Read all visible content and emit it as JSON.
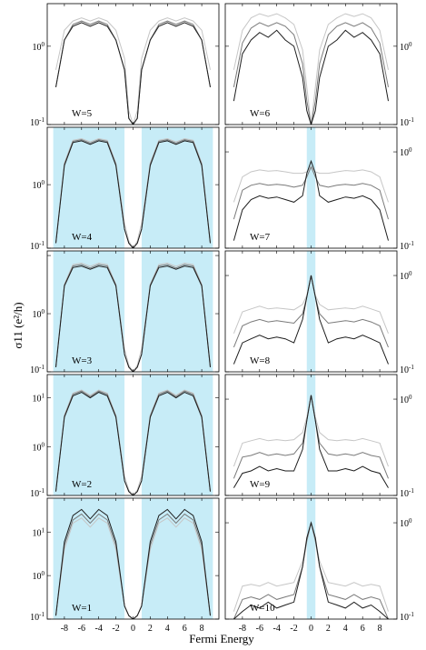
{
  "figure": {
    "ylabel": "σ11 (e²/h)",
    "xlabel": "Fermi Energy",
    "colors": {
      "shade": "#c7ecf7",
      "series_dark": "#1e1e1e",
      "series_mid": "#7a7a7a",
      "series_light": "#c6c6c6",
      "frame": "#000000"
    }
  },
  "chart_data": [
    {
      "type": "line",
      "panel": "left-1",
      "label": "W=5",
      "yscale": "log",
      "ylim": [
        0.1,
        3.5
      ],
      "ytick_labels": [
        "10^0",
        "10^-1"
      ],
      "xlim": [
        -10,
        10
      ],
      "shaded": [],
      "x": [
        -9,
        -8,
        -7,
        -6,
        -5,
        -4,
        -3,
        -2,
        -1,
        -0.5,
        0,
        0.5,
        1,
        2,
        3,
        4,
        5,
        6,
        7,
        8,
        9
      ],
      "series": [
        {
          "values": [
            0.3,
            1.2,
            1.8,
            2.0,
            1.8,
            2.0,
            1.8,
            1.2,
            0.5,
            0.12,
            0.1,
            0.12,
            0.5,
            1.2,
            1.8,
            2.0,
            1.8,
            2.0,
            1.8,
            1.2,
            0.3
          ]
        },
        {
          "values": [
            0.3,
            1.2,
            1.9,
            2.1,
            1.9,
            2.1,
            1.9,
            1.2,
            0.5,
            0.12,
            0.1,
            0.12,
            0.5,
            1.2,
            1.9,
            2.1,
            1.9,
            2.1,
            1.9,
            1.2,
            0.3
          ]
        },
        {
          "values": [
            0.5,
            1.6,
            2.1,
            2.3,
            2.1,
            2.3,
            2.1,
            1.6,
            0.7,
            0.15,
            0.1,
            0.15,
            0.7,
            1.6,
            2.1,
            2.3,
            2.1,
            2.3,
            2.1,
            1.6,
            0.5
          ]
        }
      ]
    },
    {
      "type": "line",
      "panel": "right-1",
      "label": "W=6",
      "yscale": "log",
      "ylim": [
        0.1,
        3.5
      ],
      "ytick_labels": [
        "10^0",
        "10^-1"
      ],
      "xlim": [
        -10,
        10
      ],
      "shaded": [],
      "x": [
        -9,
        -8,
        -7,
        -6,
        -5,
        -4,
        -3,
        -2,
        -1,
        -0.5,
        0,
        0.5,
        1,
        2,
        3,
        4,
        5,
        6,
        7,
        8,
        9
      ],
      "series": [
        {
          "values": [
            0.2,
            0.8,
            1.2,
            1.5,
            1.3,
            1.6,
            1.2,
            1.0,
            0.4,
            0.15,
            0.1,
            0.15,
            0.4,
            1.0,
            1.2,
            1.6,
            1.3,
            1.5,
            1.2,
            0.8,
            0.2
          ]
        },
        {
          "values": [
            0.3,
            1.1,
            1.7,
            2.0,
            1.8,
            2.0,
            1.8,
            1.4,
            0.6,
            0.2,
            0.1,
            0.2,
            0.6,
            1.4,
            1.8,
            2.0,
            1.8,
            2.0,
            1.7,
            1.1,
            0.3
          ]
        },
        {
          "values": [
            0.5,
            1.6,
            2.3,
            2.6,
            2.4,
            2.6,
            2.3,
            1.9,
            0.9,
            0.3,
            0.1,
            0.3,
            0.9,
            1.9,
            2.3,
            2.6,
            2.4,
            2.6,
            2.3,
            1.6,
            0.5
          ]
        }
      ]
    },
    {
      "type": "line",
      "panel": "left-2",
      "label": "W=4",
      "yscale": "log",
      "ylim": [
        0.1,
        8
      ],
      "ytick_labels": [
        "10^0",
        "10^-1"
      ],
      "xlim": [
        -10,
        10
      ],
      "shaded": [
        [
          -9.3,
          -1.0
        ],
        [
          1.0,
          9.3
        ]
      ],
      "x": [
        -9,
        -8,
        -7,
        -6,
        -5,
        -4,
        -3,
        -2,
        -1,
        -0.5,
        0,
        0.5,
        1,
        2,
        3,
        4,
        5,
        6,
        7,
        8,
        9
      ],
      "series": [
        {
          "values": [
            0.12,
            2.0,
            4.6,
            4.9,
            4.3,
            4.9,
            4.6,
            2.0,
            0.2,
            0.12,
            0.1,
            0.12,
            0.2,
            2.0,
            4.6,
            4.9,
            4.3,
            4.9,
            4.6,
            2.0,
            0.12
          ]
        },
        {
          "values": [
            0.12,
            2.1,
            4.8,
            5.1,
            4.5,
            5.1,
            4.8,
            2.1,
            0.2,
            0.12,
            0.1,
            0.12,
            0.2,
            2.1,
            4.8,
            5.1,
            4.5,
            5.1,
            4.8,
            2.1,
            0.12
          ]
        },
        {
          "values": [
            0.13,
            2.2,
            5.0,
            5.3,
            4.7,
            5.3,
            5.0,
            2.2,
            0.25,
            0.13,
            0.1,
            0.13,
            0.25,
            2.2,
            5.0,
            5.3,
            4.7,
            5.3,
            5.0,
            2.2,
            0.13
          ]
        }
      ]
    },
    {
      "type": "line",
      "panel": "right-2",
      "label": "W=7",
      "yscale": "log",
      "ylim": [
        0.1,
        1.8
      ],
      "ytick_labels": [
        "10^0",
        "10^-1"
      ],
      "xlim": [
        -10,
        10
      ],
      "shaded": [
        [
          -0.5,
          0.5
        ]
      ],
      "x": [
        -9,
        -8,
        -7,
        -6,
        -5,
        -4,
        -3,
        -2,
        -1,
        -0.5,
        0,
        0.5,
        1,
        2,
        3,
        4,
        5,
        6,
        7,
        8,
        9
      ],
      "series": [
        {
          "values": [
            0.12,
            0.25,
            0.32,
            0.35,
            0.33,
            0.34,
            0.32,
            0.3,
            0.35,
            0.6,
            0.8,
            0.6,
            0.35,
            0.3,
            0.32,
            0.34,
            0.33,
            0.35,
            0.32,
            0.25,
            0.12
          ]
        },
        {
          "values": [
            0.2,
            0.4,
            0.45,
            0.47,
            0.45,
            0.46,
            0.45,
            0.43,
            0.45,
            0.55,
            0.7,
            0.55,
            0.45,
            0.43,
            0.45,
            0.46,
            0.45,
            0.47,
            0.45,
            0.4,
            0.2
          ]
        },
        {
          "values": [
            0.3,
            0.55,
            0.62,
            0.65,
            0.63,
            0.64,
            0.62,
            0.6,
            0.6,
            0.62,
            0.7,
            0.62,
            0.6,
            0.6,
            0.62,
            0.64,
            0.63,
            0.65,
            0.62,
            0.55,
            0.3
          ]
        }
      ]
    },
    {
      "type": "line",
      "panel": "left-3",
      "label": "W=3",
      "yscale": "log",
      "ylim": [
        0.1,
        12
      ],
      "ytick_labels": [
        "10^0",
        "10^-1"
      ],
      "xlim": [
        -10,
        10
      ],
      "shaded": [
        [
          -9.3,
          -1.0
        ],
        [
          1.0,
          9.3
        ]
      ],
      "x": [
        -9,
        -8,
        -7,
        -6,
        -5,
        -4,
        -3,
        -2,
        -1,
        -0.5,
        0,
        0.5,
        1,
        2,
        3,
        4,
        5,
        6,
        7,
        8,
        9
      ],
      "series": [
        {
          "values": [
            0.12,
            3.0,
            6.2,
            6.6,
            5.8,
            6.6,
            6.2,
            3.0,
            0.2,
            0.12,
            0.1,
            0.12,
            0.2,
            3.0,
            6.2,
            6.6,
            5.8,
            6.6,
            6.2,
            3.0,
            0.12
          ]
        },
        {
          "values": [
            0.12,
            3.1,
            6.6,
            7.0,
            6.1,
            7.0,
            6.6,
            3.1,
            0.2,
            0.12,
            0.1,
            0.12,
            0.2,
            3.1,
            6.6,
            7.0,
            6.1,
            7.0,
            6.6,
            3.1,
            0.12
          ]
        },
        {
          "values": [
            0.13,
            3.2,
            7.0,
            7.4,
            6.5,
            7.4,
            7.0,
            3.2,
            0.25,
            0.13,
            0.1,
            0.13,
            0.25,
            3.2,
            7.0,
            7.4,
            6.5,
            7.4,
            7.0,
            3.2,
            0.13
          ]
        }
      ]
    },
    {
      "type": "line",
      "panel": "right-3",
      "label": "W=8",
      "yscale": "log",
      "ylim": [
        0.1,
        1.8
      ],
      "ytick_labels": [
        "10^0",
        "10^-1"
      ],
      "xlim": [
        -10,
        10
      ],
      "shaded": [
        [
          -0.5,
          0.5
        ]
      ],
      "x": [
        -9,
        -8,
        -7,
        -6,
        -5,
        -4,
        -3,
        -2,
        -1,
        -0.5,
        0,
        0.5,
        1,
        2,
        3,
        4,
        5,
        6,
        7,
        8,
        9
      ],
      "series": [
        {
          "values": [
            0.12,
            0.2,
            0.22,
            0.24,
            0.22,
            0.23,
            0.22,
            0.2,
            0.35,
            0.6,
            1.0,
            0.6,
            0.35,
            0.2,
            0.22,
            0.23,
            0.22,
            0.24,
            0.22,
            0.2,
            0.12
          ]
        },
        {
          "values": [
            0.18,
            0.3,
            0.33,
            0.35,
            0.33,
            0.34,
            0.33,
            0.32,
            0.4,
            0.6,
            1.0,
            0.6,
            0.4,
            0.32,
            0.33,
            0.34,
            0.33,
            0.35,
            0.33,
            0.3,
            0.18
          ]
        },
        {
          "values": [
            0.25,
            0.42,
            0.45,
            0.48,
            0.45,
            0.46,
            0.45,
            0.44,
            0.5,
            0.62,
            1.0,
            0.62,
            0.5,
            0.44,
            0.45,
            0.46,
            0.45,
            0.48,
            0.45,
            0.42,
            0.25
          ]
        }
      ]
    },
    {
      "type": "line",
      "panel": "left-4",
      "label": "W=2",
      "yscale": "log",
      "ylim": [
        0.1,
        30
      ],
      "ytick_labels": [
        "10^1",
        "10^0",
        "10^-1"
      ],
      "xlim": [
        -10,
        10
      ],
      "shaded": [
        [
          -9.3,
          -1.0
        ],
        [
          1.0,
          9.3
        ]
      ],
      "x": [
        -9,
        -8,
        -7,
        -6,
        -5,
        -4,
        -3,
        -2,
        -1,
        -0.5,
        0,
        0.5,
        1,
        2,
        3,
        4,
        5,
        6,
        7,
        8,
        9
      ],
      "series": [
        {
          "values": [
            0.12,
            4.0,
            11,
            13,
            10,
            13,
            11,
            4.0,
            0.2,
            0.12,
            0.1,
            0.12,
            0.2,
            4.0,
            11,
            13,
            10,
            13,
            11,
            4.0,
            0.12
          ]
        },
        {
          "values": [
            0.12,
            4.2,
            11.8,
            13.8,
            10.6,
            13.8,
            11.8,
            4.2,
            0.2,
            0.12,
            0.1,
            0.12,
            0.2,
            4.2,
            11.8,
            13.8,
            10.6,
            13.8,
            11.8,
            4.2,
            0.12
          ]
        },
        {
          "values": [
            0.13,
            4.4,
            12.5,
            14.5,
            11.3,
            14.5,
            12.5,
            4.4,
            0.25,
            0.13,
            0.1,
            0.13,
            0.25,
            4.4,
            12.5,
            14.5,
            11.3,
            14.5,
            12.5,
            4.4,
            0.13
          ]
        }
      ]
    },
    {
      "type": "line",
      "panel": "right-4",
      "label": "W=9",
      "yscale": "log",
      "ylim": [
        0.1,
        1.8
      ],
      "ytick_labels": [
        "10^0",
        "10^-1"
      ],
      "xlim": [
        -10,
        10
      ],
      "shaded": [
        [
          -0.5,
          0.5
        ]
      ],
      "x": [
        -9,
        -8,
        -7,
        -6,
        -5,
        -4,
        -3,
        -2,
        -1,
        -0.5,
        0,
        0.5,
        1,
        2,
        3,
        4,
        5,
        6,
        7,
        8,
        9
      ],
      "series": [
        {
          "values": [
            0.12,
            0.17,
            0.18,
            0.2,
            0.18,
            0.19,
            0.18,
            0.18,
            0.3,
            0.6,
            1.1,
            0.6,
            0.3,
            0.18,
            0.18,
            0.19,
            0.18,
            0.2,
            0.18,
            0.17,
            0.12
          ]
        },
        {
          "values": [
            0.15,
            0.25,
            0.26,
            0.28,
            0.26,
            0.27,
            0.26,
            0.27,
            0.35,
            0.6,
            1.1,
            0.6,
            0.35,
            0.27,
            0.26,
            0.27,
            0.26,
            0.28,
            0.26,
            0.25,
            0.15
          ]
        },
        {
          "values": [
            0.2,
            0.35,
            0.37,
            0.39,
            0.37,
            0.38,
            0.37,
            0.38,
            0.45,
            0.65,
            1.1,
            0.65,
            0.45,
            0.38,
            0.37,
            0.38,
            0.37,
            0.39,
            0.37,
            0.35,
            0.2
          ]
        }
      ]
    },
    {
      "type": "line",
      "panel": "left-5",
      "label": "W=1",
      "yscale": "log",
      "ylim": [
        0.1,
        60
      ],
      "ytick_labels": [
        "10^1",
        "10^0",
        "10^-1"
      ],
      "xlim": [
        -10,
        10
      ],
      "shaded": [
        [
          -9.3,
          -1.0
        ],
        [
          1.0,
          9.3
        ]
      ],
      "x": [
        -9,
        -8,
        -7,
        -6,
        -5,
        -4,
        -3,
        -2,
        -1,
        -0.5,
        0,
        0.5,
        1,
        2,
        3,
        4,
        5,
        6,
        7,
        8,
        9
      ],
      "series": [
        {
          "values": [
            0.12,
            6,
            24,
            33,
            20,
            33,
            24,
            6,
            0.2,
            0.12,
            0.1,
            0.12,
            0.2,
            6,
            24,
            33,
            20,
            33,
            24,
            6,
            0.12
          ]
        },
        {
          "values": [
            0.12,
            5,
            19,
            26,
            16,
            26,
            19,
            5,
            0.2,
            0.12,
            0.1,
            0.12,
            0.2,
            5,
            19,
            26,
            16,
            26,
            19,
            5,
            0.12
          ]
        },
        {
          "values": [
            0.12,
            4,
            16,
            21,
            13,
            21,
            16,
            4,
            0.2,
            0.12,
            0.1,
            0.12,
            0.2,
            4,
            16,
            21,
            13,
            21,
            16,
            4,
            0.12
          ]
        }
      ]
    },
    {
      "type": "line",
      "panel": "right-5",
      "label": "W=10",
      "yscale": "log",
      "ylim": [
        0.1,
        1.8
      ],
      "ytick_labels": [
        "10^0",
        "10^-1"
      ],
      "xlim": [
        -10,
        10
      ],
      "shaded": [
        [
          -0.5,
          0.5
        ]
      ],
      "x": [
        -9,
        -8,
        -7,
        -6,
        -5,
        -4,
        -3,
        -2,
        -1,
        -0.5,
        0,
        0.5,
        1,
        2,
        3,
        4,
        5,
        6,
        7,
        8,
        9
      ],
      "series": [
        {
          "values": [
            0.1,
            0.12,
            0.14,
            0.13,
            0.15,
            0.13,
            0.14,
            0.15,
            0.35,
            0.7,
            1.0,
            0.7,
            0.35,
            0.15,
            0.14,
            0.13,
            0.15,
            0.13,
            0.14,
            0.12,
            0.1
          ]
        },
        {
          "values": [
            0.1,
            0.16,
            0.17,
            0.16,
            0.18,
            0.16,
            0.17,
            0.18,
            0.35,
            0.65,
            1.0,
            0.65,
            0.35,
            0.18,
            0.17,
            0.16,
            0.18,
            0.16,
            0.17,
            0.16,
            0.1
          ]
        },
        {
          "values": [
            0.12,
            0.22,
            0.23,
            0.22,
            0.24,
            0.22,
            0.23,
            0.24,
            0.4,
            0.65,
            1.0,
            0.65,
            0.4,
            0.24,
            0.23,
            0.22,
            0.24,
            0.22,
            0.23,
            0.22,
            0.12
          ]
        }
      ]
    }
  ],
  "x_tick_labels": [
    "-8",
    "-6",
    "-4",
    "-2",
    "0",
    "2",
    "4",
    "6",
    "8"
  ],
  "x_tick_values": [
    -8,
    -6,
    -4,
    -2,
    0,
    2,
    4,
    6,
    8
  ]
}
